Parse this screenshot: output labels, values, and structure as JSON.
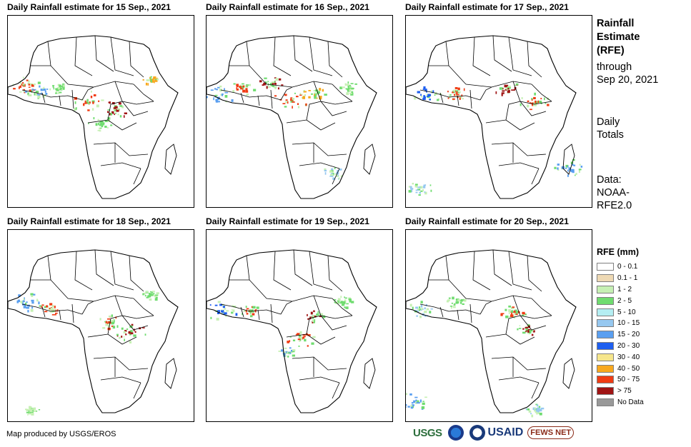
{
  "panels": [
    {
      "title": "Daily Rainfall estimate for 15 Sep., 2021"
    },
    {
      "title": "Daily Rainfall estimate for 16 Sep., 2021"
    },
    {
      "title": "Daily Rainfall estimate for 17 Sep., 2021"
    },
    {
      "title": "Daily Rainfall estimate for 18 Sep., 2021"
    },
    {
      "title": "Daily Rainfall estimate for 19 Sep., 2021"
    },
    {
      "title": "Daily Rainfall estimate for 20 Sep., 2021"
    }
  ],
  "sidebar": {
    "title_line1": "Rainfall",
    "title_line2": "Estimate",
    "title_line3": "(RFE)",
    "through": "through",
    "through_date": "Sep 20, 2021",
    "daily1": "Daily",
    "daily2": "Totals",
    "data1": "Data:",
    "data2": "NOAA-",
    "data3": "RFE2.0"
  },
  "legend": {
    "title": "RFE (mm)",
    "items": [
      {
        "label": "0 - 0.1",
        "color": "#ffffff"
      },
      {
        "label": "0.1 - 1",
        "color": "#eed9b4"
      },
      {
        "label": "1 - 2",
        "color": "#c6f0b4"
      },
      {
        "label": "2 - 5",
        "color": "#6fdc6f"
      },
      {
        "label": "5 - 10",
        "color": "#b4eef2"
      },
      {
        "label": "10 - 15",
        "color": "#96c8f0"
      },
      {
        "label": "15 - 20",
        "color": "#5a9ff0"
      },
      {
        "label": "20 - 30",
        "color": "#1e5ff0"
      },
      {
        "label": "30 - 40",
        "color": "#f6e68c"
      },
      {
        "label": "40 - 50",
        "color": "#f8a81e"
      },
      {
        "label": "50 - 75",
        "color": "#f03c14"
      },
      {
        "label": "> 75",
        "color": "#a01414"
      },
      {
        "label": "No Data",
        "color": "#999999"
      }
    ]
  },
  "footer": {
    "credit": "Map produced by USGS/EROS",
    "logos": [
      "USGS",
      "NOAA",
      "DOI",
      "USAID",
      "FEWS NET"
    ]
  }
}
